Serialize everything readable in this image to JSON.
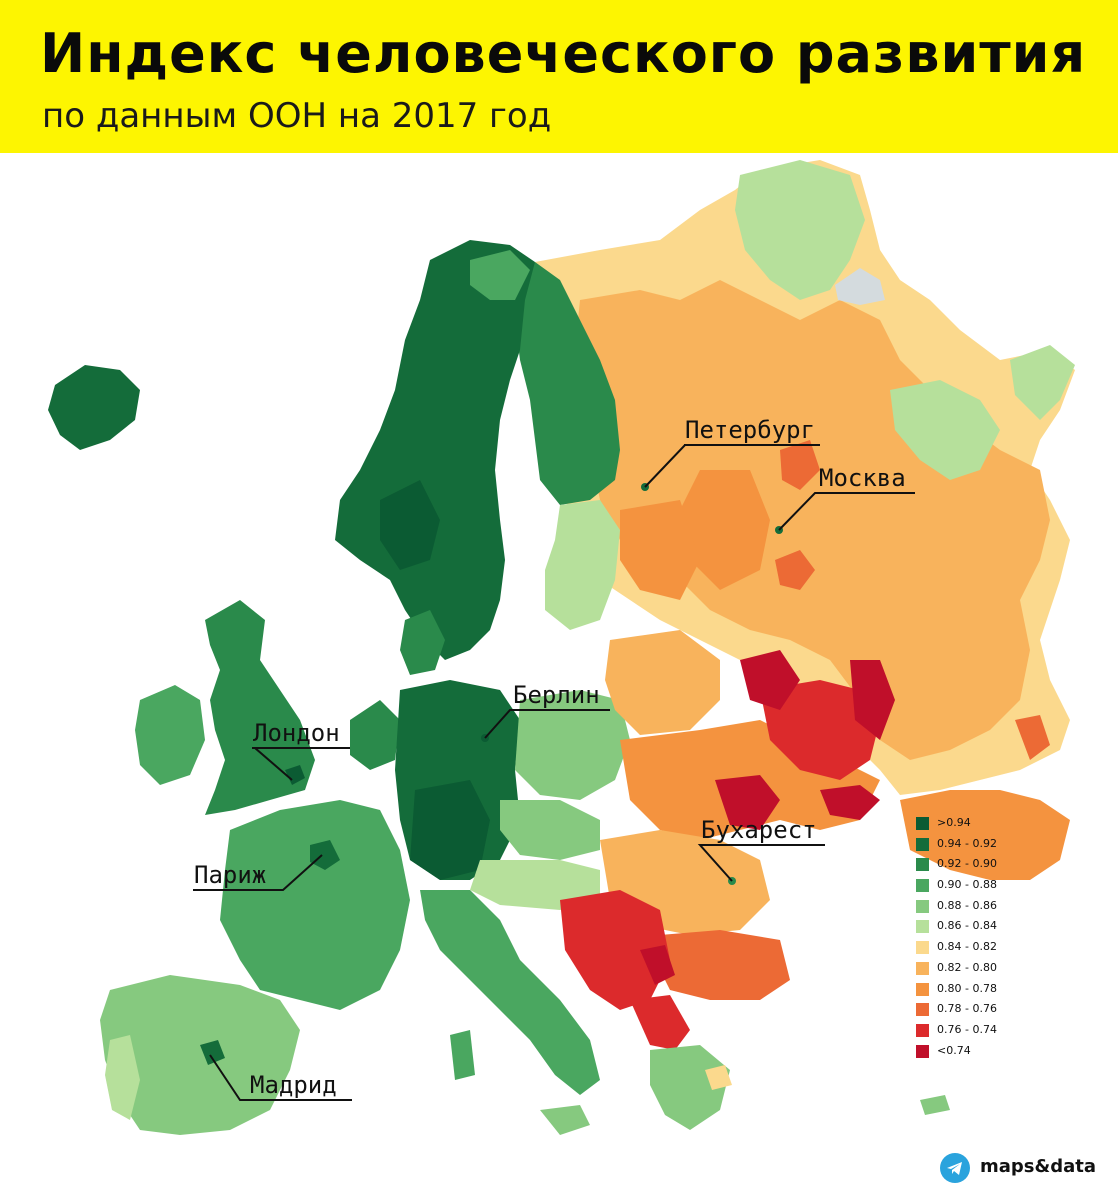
{
  "header": {
    "title": "Индекс человеческого развития",
    "subtitle": "по данным ООН на 2017 год"
  },
  "cities": {
    "petersburg": "Петербург",
    "moscow": "Москва",
    "berlin": "Берлин",
    "london": "Лондон",
    "bucharest": "Бухарест",
    "paris": "Париж",
    "madrid": "Мадрид"
  },
  "legend": {
    "items": [
      {
        "label": ">0.94",
        "color": "#0b5b33"
      },
      {
        "label": "0.94 - 0.92",
        "color": "#146c3a"
      },
      {
        "label": "0.92 - 0.90",
        "color": "#2a8a4b"
      },
      {
        "label": "0.90 - 0.88",
        "color": "#4aa760"
      },
      {
        "label": "0.88 - 0.86",
        "color": "#86c97f"
      },
      {
        "label": "0.86 - 0.84",
        "color": "#b6e09b"
      },
      {
        "label": "0.84 - 0.82",
        "color": "#fbd98d"
      },
      {
        "label": "0.82 - 0.80",
        "color": "#f8b35c"
      },
      {
        "label": "0.80 - 0.78",
        "color": "#f4933f"
      },
      {
        "label": "0.78 - 0.76",
        "color": "#ec6a35"
      },
      {
        "label": "0.76 - 0.74",
        "color": "#dc2a2c"
      },
      {
        "label": "<0.74",
        "color": "#c00f2a"
      }
    ]
  },
  "brand": {
    "text": "maps&data",
    "icon": "telegram-icon",
    "color": "#2aa3dd"
  },
  "colors": {
    "banner": "#fdf501",
    "no_data": "#d4dbde"
  }
}
